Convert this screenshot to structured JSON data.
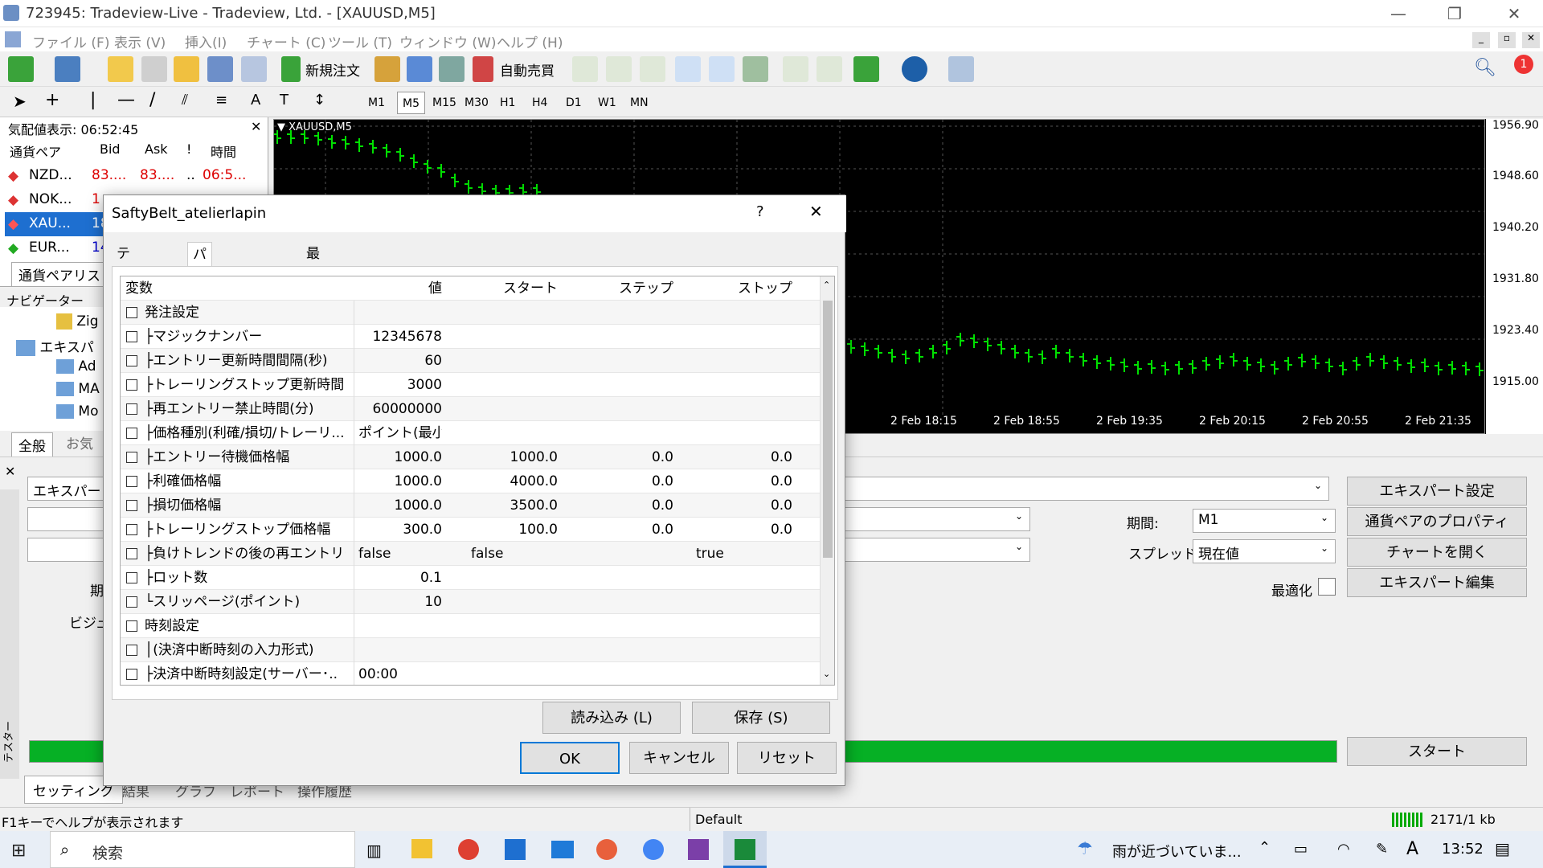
{
  "window": {
    "title": "723945: Tradeview-Live - Tradeview, Ltd. - [XAUUSD,M5]"
  },
  "menu": [
    "ファイル (F)",
    "表示 (V)",
    "挿入(I)",
    "チャート (C)",
    "ツール (T)",
    "ウィンドウ (W)",
    "ヘルプ (H)"
  ],
  "toolbar": {
    "new_order": "新規注文",
    "auto_trade": "自動売買",
    "notification_count": "1"
  },
  "timeframes": [
    "M1",
    "M5",
    "M15",
    "M30",
    "H1",
    "H4",
    "D1",
    "W1",
    "MN"
  ],
  "market_watch": {
    "title": "気配値表示: 06:52:45",
    "headers": [
      "通貨ペア",
      "Bid",
      "Ask",
      "!",
      "時間"
    ],
    "rows": [
      {
        "sym": "NZD...",
        "bid": "83....",
        "ask": "83....",
        "f": "..",
        "time": "06:5..."
      },
      {
        "sym": "NOK...",
        "bid": "1",
        "ask": "",
        "f": "",
        "time": ""
      },
      {
        "sym": "XAU...",
        "bid": "18",
        "ask": "",
        "f": "",
        "time": ""
      },
      {
        "sym": "EUR...",
        "bid": "14",
        "ask": "",
        "f": "",
        "time": ""
      }
    ],
    "tab": "通貨ペアリスト"
  },
  "navigator": {
    "title": "ナビゲーター",
    "items": [
      "Zig",
      "エキスパ",
      "Ad",
      "MA",
      "Mo"
    ],
    "tabs": [
      "全般",
      "お気"
    ]
  },
  "chart": {
    "symbol": "XAUUSD,M5",
    "prices": [
      "1956.90",
      "1948.60",
      "1940.20",
      "1931.80",
      "1923.40",
      "1915.00"
    ],
    "times": [
      "2 Feb 18:15",
      "2 Feb 18:55",
      "2 Feb 19:35",
      "2 Feb 20:15",
      "2 Feb 20:55",
      "2 Feb 21:35"
    ]
  },
  "tester": {
    "expert_label": "エキスパート",
    "period_label": "期間:",
    "period_value": "M1",
    "spread_label": "スプレッド:",
    "spread_value": "現在値",
    "optimize_label": "最適化",
    "left_labels": [
      "期",
      "ビジュ"
    ],
    "buttons": [
      "エキスパート設定",
      "通貨ペアのプロパティ",
      "チャートを開く",
      "エキスパート編集"
    ],
    "start": "スタート",
    "side_label": "テスター",
    "tabs": [
      "セッティング",
      "結果",
      "グラフ",
      "レポート",
      "操作履歴"
    ]
  },
  "dialog": {
    "title": "SaftyBelt_atelierlapin",
    "help": "?",
    "close": "✕",
    "tabs": [
      "テスト設定",
      "パラメーターの入力",
      "最適化"
    ],
    "headers": [
      "変数",
      "値",
      "スタート",
      "ステップ",
      "ストップ"
    ],
    "rows": [
      {
        "name": "発注設定",
        "val": "",
        "start": "",
        "step": "",
        "stop": ""
      },
      {
        "name": "├マジックナンバー",
        "val": "12345678",
        "start": "",
        "step": "",
        "stop": ""
      },
      {
        "name": "├エントリー更新時間間隔(秒)",
        "val": "60",
        "start": "",
        "step": "",
        "stop": ""
      },
      {
        "name": "├トレーリングストップ更新時間･..",
        "val": "3000",
        "start": "",
        "step": "",
        "stop": ""
      },
      {
        "name": "├再エントリー禁止時間(分)",
        "val": "60000000",
        "start": "",
        "step": "",
        "stop": ""
      },
      {
        "name": "├価格種別(利確/損切/トレーリ...",
        "val": "ポイント(最小価･..",
        "start": "",
        "step": "",
        "stop": ""
      },
      {
        "name": "├エントリー待機価格幅",
        "val": "1000.0",
        "start": "1000.0",
        "step": "0.0",
        "stop": "0.0"
      },
      {
        "name": "├利確価格幅",
        "val": "1000.0",
        "start": "4000.0",
        "step": "0.0",
        "stop": "0.0"
      },
      {
        "name": "├損切価格幅",
        "val": "1000.0",
        "start": "3500.0",
        "step": "0.0",
        "stop": "0.0"
      },
      {
        "name": "├トレーリングストップ価格幅",
        "val": "300.0",
        "start": "100.0",
        "step": "0.0",
        "stop": "0.0"
      },
      {
        "name": "├負けトレンドの後の再エントリー...",
        "val": "false",
        "start": "false",
        "step": "",
        "stop": "true"
      },
      {
        "name": "├ロット数",
        "val": "0.1",
        "start": "",
        "step": "",
        "stop": ""
      },
      {
        "name": "└スリッページ(ポイント)",
        "val": "10",
        "start": "",
        "step": "",
        "stop": ""
      },
      {
        "name": "時刻設定",
        "val": "",
        "start": "",
        "step": "",
        "stop": ""
      },
      {
        "name": "│(決済中断時刻の入力形式)",
        "val": "",
        "start": "",
        "step": "",
        "stop": ""
      },
      {
        "name": "├決済中断時刻設定(サーバー･..",
        "val": "00:00",
        "start": "",
        "step": "",
        "stop": ""
      }
    ],
    "load": "読み込み (L)",
    "save": "保存 (S)",
    "ok": "OK",
    "cancel": "キャンセル",
    "reset": "リセット"
  },
  "status": {
    "help": "F1キーでヘルプが表示されます",
    "profile": "Default",
    "traffic": "2171/1 kb"
  },
  "taskbar": {
    "search": "検索",
    "weather": "雨が近づいていま...",
    "ime": "A",
    "time": "13:52"
  }
}
